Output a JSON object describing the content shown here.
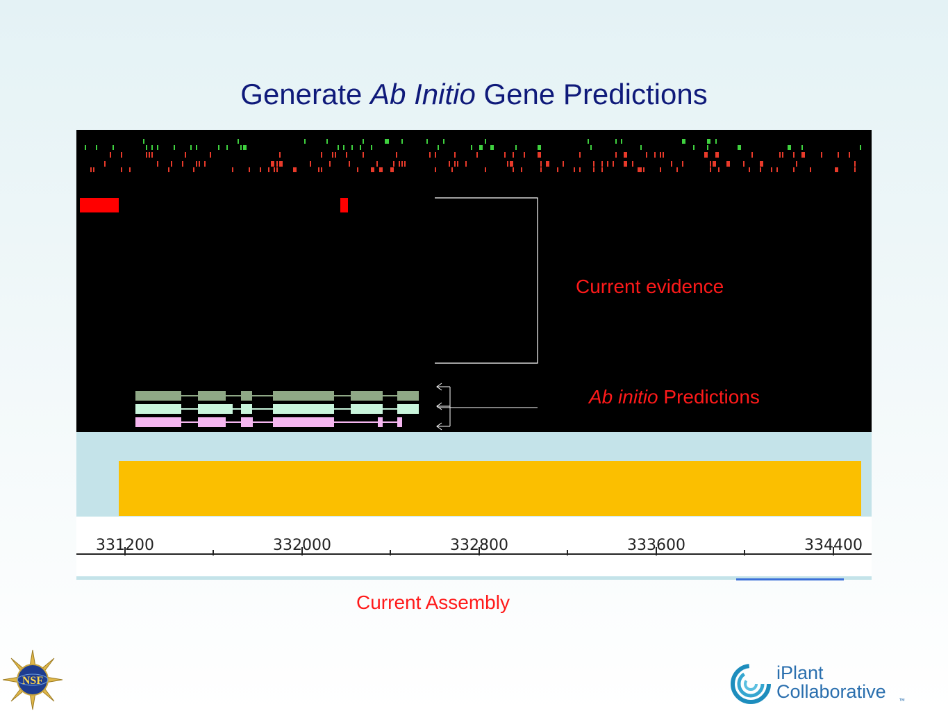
{
  "slide": {
    "title_parts": [
      "Generate ",
      "Ab Initio",
      " Gene Predictions"
    ]
  },
  "tracks": {
    "evidence_label": "Current evidence",
    "prediction_label_parts": [
      "Ab initio",
      " Predictions"
    ],
    "assembly_label": "Current Assembly"
  },
  "ruler": {
    "ticks": [
      "331200",
      "332000",
      "332800",
      "333600",
      "334400"
    ]
  },
  "colors": {
    "title": "#0f1a7a",
    "callout": "#ff1a1a",
    "assembly": "#fbbf00",
    "track_bg": "#c4e3e9",
    "prediction_1": "#8fa886",
    "prediction_2": "#c9f5dc",
    "prediction_3": "#f5b6f0"
  },
  "logos": {
    "nsf": "NSF",
    "iplant_line1": "iPlant",
    "iplant_line2": "Collaborative",
    "iplant_tm": "™"
  }
}
